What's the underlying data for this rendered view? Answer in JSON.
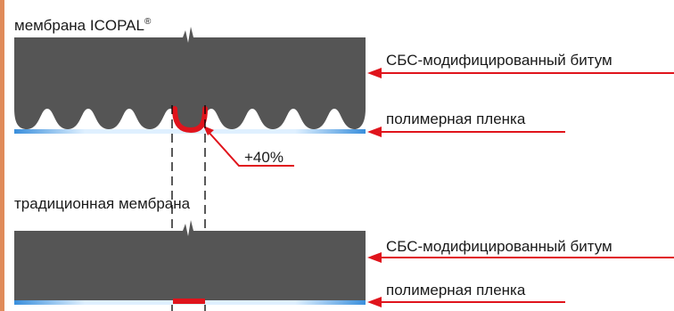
{
  "top_section": {
    "title": "мембрана ICOPAL",
    "title_mark": "®",
    "bitumen_label": "СБС-модифицированный битум",
    "film_label": "полимерная пленка",
    "increase_label": "+40%"
  },
  "bottom_section": {
    "title": "традиционная мембрана",
    "bitumen_label": "СБС-модифицированный битум",
    "film_label": "полимерная пленка"
  },
  "colors": {
    "bitumen": "#555555",
    "film": "#3a8fdc",
    "film_light": "#dff0ff",
    "arrow": "#e0141c",
    "left_bar": "#e08b5a",
    "highlight": "#e0141c"
  }
}
